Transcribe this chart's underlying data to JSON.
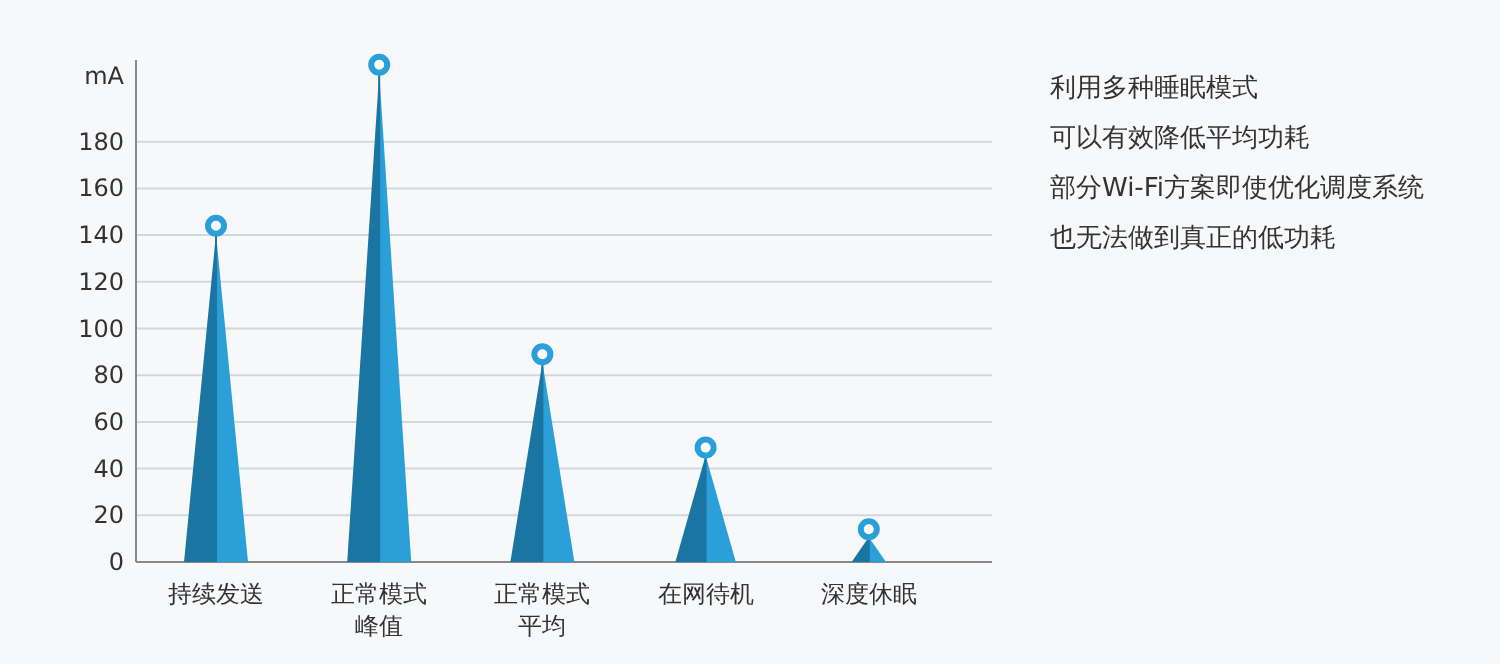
{
  "chart_data": {
    "type": "lollipop",
    "ylabel": "mA",
    "categories": [
      "持续发送",
      "正常模式峰值",
      "正常模式平均",
      "在网待机",
      "深度休眠"
    ],
    "series": [
      {
        "color": "#2a9fd8",
        "values": [
          144,
          213,
          89,
          49,
          14
        ]
      }
    ],
    "ylim": [
      0,
      215
    ],
    "yticks": [
      0,
      20,
      40,
      60,
      80,
      100,
      120,
      140,
      160,
      180
    ],
    "grid": "y",
    "marker": "circle",
    "annotations": [
      "利用多种睡眠模式",
      "可以有效降低平均功耗",
      "部分Wi-Fi方案即使优化调度系统",
      "也无法做到真正的低功耗"
    ]
  }
}
